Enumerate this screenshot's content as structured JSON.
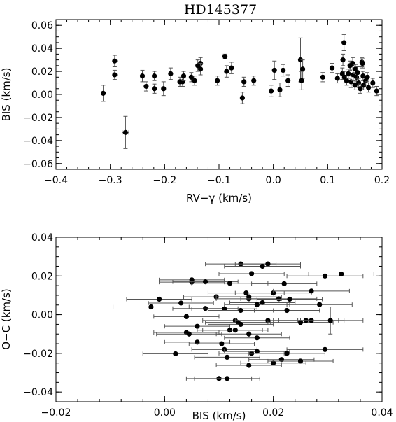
{
  "chart_data": [
    {
      "type": "scatter",
      "title": "HD145377",
      "xlabel": "RV−γ (km/s)",
      "ylabel": "BIS (km/s)",
      "xlim": [
        -0.4,
        0.2
      ],
      "ylim": [
        -0.065,
        0.065
      ],
      "xticks": [
        -0.4,
        -0.3,
        -0.2,
        -0.1,
        0.0,
        0.1,
        0.2
      ],
      "xtick_labels": [
        "−0.4",
        "−0.3",
        "−0.2",
        "−0.1",
        "0.0",
        "0.1",
        "0.2"
      ],
      "yticks": [
        -0.06,
        -0.04,
        -0.02,
        0.0,
        0.02,
        0.04,
        0.06
      ],
      "ytick_labels": [
        "−0.06",
        "−0.04",
        "−0.02",
        "0.00",
        "0.02",
        "0.04",
        "0.06"
      ],
      "grid": false,
      "points": [
        {
          "x": -0.313,
          "y": 0.001,
          "ey": 0.007
        },
        {
          "x": -0.292,
          "y": 0.029,
          "ey": 0.005
        },
        {
          "x": -0.292,
          "y": 0.017,
          "ey": 0.004
        },
        {
          "x": -0.272,
          "y": -0.033,
          "ey": 0.014,
          "ex": 0.006
        },
        {
          "x": -0.241,
          "y": 0.016,
          "ey": 0.005
        },
        {
          "x": -0.234,
          "y": 0.007,
          "ey": 0.004
        },
        {
          "x": -0.219,
          "y": 0.016,
          "ey": 0.004
        },
        {
          "x": -0.219,
          "y": 0.005,
          "ey": 0.004
        },
        {
          "x": -0.202,
          "y": 0.005,
          "ey": 0.006
        },
        {
          "x": -0.189,
          "y": 0.018,
          "ey": 0.005
        },
        {
          "x": -0.172,
          "y": 0.011,
          "ey": 0.004
        },
        {
          "x": -0.167,
          "y": 0.011,
          "ey": 0.004
        },
        {
          "x": -0.165,
          "y": 0.016,
          "ey": 0.004
        },
        {
          "x": -0.151,
          "y": 0.015,
          "ey": 0.004
        },
        {
          "x": -0.145,
          "y": 0.012,
          "ey": 0.004
        },
        {
          "x": -0.139,
          "y": 0.025,
          "ey": 0.005
        },
        {
          "x": -0.134,
          "y": 0.027,
          "ey": 0.005
        },
        {
          "x": -0.134,
          "y": 0.022,
          "ey": 0.005
        },
        {
          "x": -0.103,
          "y": 0.012,
          "ey": 0.004
        },
        {
          "x": -0.089,
          "y": 0.033,
          "ey": 0.002
        },
        {
          "x": -0.086,
          "y": 0.02,
          "ey": 0.005
        },
        {
          "x": -0.077,
          "y": 0.023,
          "ey": 0.005
        },
        {
          "x": -0.057,
          "y": -0.003,
          "ey": 0.005
        },
        {
          "x": -0.054,
          "y": 0.011,
          "ey": 0.004
        },
        {
          "x": -0.036,
          "y": 0.012,
          "ey": 0.004
        },
        {
          "x": -0.004,
          "y": 0.003,
          "ey": 0.005
        },
        {
          "x": 0.002,
          "y": 0.021,
          "ey": 0.008
        },
        {
          "x": 0.012,
          "y": 0.004,
          "ey": 0.006
        },
        {
          "x": 0.018,
          "y": 0.021,
          "ey": 0.005
        },
        {
          "x": 0.027,
          "y": 0.012,
          "ey": 0.005
        },
        {
          "x": 0.05,
          "y": 0.03,
          "ey": 0.019
        },
        {
          "x": 0.054,
          "y": 0.022,
          "ey": 0.008
        },
        {
          "x": 0.052,
          "y": 0.012,
          "ey": 0.008
        },
        {
          "x": 0.091,
          "y": 0.015,
          "ey": 0.004
        },
        {
          "x": 0.108,
          "y": 0.023,
          "ey": 0.004
        },
        {
          "x": 0.118,
          "y": 0.014,
          "ey": 0.004
        },
        {
          "x": 0.13,
          "y": 0.045,
          "ey": 0.007
        },
        {
          "x": 0.128,
          "y": 0.03,
          "ey": 0.005
        },
        {
          "x": 0.127,
          "y": 0.018,
          "ey": 0.005
        },
        {
          "x": 0.131,
          "y": 0.015,
          "ey": 0.005
        },
        {
          "x": 0.135,
          "y": 0.012,
          "ey": 0.004
        },
        {
          "x": 0.138,
          "y": 0.018,
          "ey": 0.004
        },
        {
          "x": 0.141,
          "y": 0.025,
          "ey": 0.004
        },
        {
          "x": 0.143,
          "y": 0.011,
          "ey": 0.005
        },
        {
          "x": 0.146,
          "y": 0.027,
          "ey": 0.005
        },
        {
          "x": 0.147,
          "y": 0.017,
          "ey": 0.005
        },
        {
          "x": 0.15,
          "y": 0.008,
          "ey": 0.004
        },
        {
          "x": 0.151,
          "y": 0.022,
          "ey": 0.004
        },
        {
          "x": 0.153,
          "y": 0.015,
          "ey": 0.004
        },
        {
          "x": 0.155,
          "y": 0.019,
          "ey": 0.005
        },
        {
          "x": 0.157,
          "y": 0.01,
          "ey": 0.004
        },
        {
          "x": 0.16,
          "y": 0.005,
          "ey": 0.004
        },
        {
          "x": 0.163,
          "y": 0.028,
          "ey": 0.004
        },
        {
          "x": 0.164,
          "y": 0.027,
          "ey": 0.004
        },
        {
          "x": 0.165,
          "y": 0.016,
          "ey": 0.004
        },
        {
          "x": 0.166,
          "y": 0.008,
          "ey": 0.004
        },
        {
          "x": 0.17,
          "y": 0.012,
          "ey": 0.004
        },
        {
          "x": 0.173,
          "y": 0.015,
          "ey": 0.004
        },
        {
          "x": 0.175,
          "y": 0.006,
          "ey": 0.004
        },
        {
          "x": 0.183,
          "y": 0.01,
          "ey": 0.004
        },
        {
          "x": 0.19,
          "y": 0.003,
          "ey": 0.004
        }
      ]
    },
    {
      "type": "scatter",
      "title": "",
      "xlabel": "BIS (km/s)",
      "ylabel": "O−C (km/s)",
      "xlim": [
        -0.02,
        0.04
      ],
      "ylim": [
        -0.045,
        0.04
      ],
      "xticks": [
        -0.02,
        0.0,
        0.02,
        0.04
      ],
      "xtick_labels": [
        "−0.02",
        "0.00",
        "0.02",
        "0.04"
      ],
      "yticks": [
        -0.04,
        -0.02,
        0.0,
        0.02,
        0.04
      ],
      "ytick_labels": [
        "−0.04",
        "−0.02",
        "0.00",
        "0.02",
        "0.04"
      ],
      "grid": false,
      "points": [
        {
          "x": 0.014,
          "y": 0.0262,
          "ex": 0.0065
        },
        {
          "x": 0.019,
          "y": 0.0262,
          "ex": 0.006
        },
        {
          "x": 0.018,
          "y": 0.025,
          "ex": 0.007
        },
        {
          "x": 0.016,
          "y": 0.0212,
          "ex": 0.006
        },
        {
          "x": 0.0295,
          "y": 0.02,
          "ex": 0.007
        },
        {
          "x": 0.0325,
          "y": 0.021,
          "ex": 0.006
        },
        {
          "x": 0.005,
          "y": 0.018,
          "ex": 0.006
        },
        {
          "x": 0.005,
          "y": 0.0168,
          "ex": 0.006
        },
        {
          "x": 0.0075,
          "y": 0.017,
          "ex": 0.006
        },
        {
          "x": 0.012,
          "y": 0.0162,
          "ex": 0.007
        },
        {
          "x": 0.022,
          "y": 0.016,
          "ex": 0.006
        },
        {
          "x": 0.015,
          "y": 0.0112,
          "ex": 0.007
        },
        {
          "x": 0.02,
          "y": 0.0112,
          "ex": 0.007
        },
        {
          "x": 0.027,
          "y": 0.0122,
          "ex": 0.007
        },
        {
          "x": 0.0095,
          "y": 0.0092,
          "ex": 0.006
        },
        {
          "x": 0.0155,
          "y": 0.0092,
          "ex": 0.006
        },
        {
          "x": 0.0155,
          "y": 0.0082,
          "ex": 0.006
        },
        {
          "x": 0.021,
          "y": 0.0082,
          "ex": 0.007
        },
        {
          "x": 0.023,
          "y": 0.008,
          "ex": 0.006
        },
        {
          "x": -0.001,
          "y": 0.008,
          "ex": 0.006
        },
        {
          "x": 0.018,
          "y": 0.0062,
          "ex": 0.006
        },
        {
          "x": 0.017,
          "y": 0.0052,
          "ex": 0.006
        },
        {
          "x": 0.0285,
          "y": 0.0052,
          "ex": 0.006
        },
        {
          "x": 0.003,
          "y": 0.006,
          "ex": 0.006
        },
        {
          "x": -0.0025,
          "y": 0.004,
          "ex": 0.007
        },
        {
          "x": 0.0075,
          "y": 0.0032,
          "ex": 0.006
        },
        {
          "x": 0.011,
          "y": 0.003,
          "ex": 0.006
        },
        {
          "x": 0.014,
          "y": 0.0022,
          "ex": 0.006
        },
        {
          "x": 0.0225,
          "y": 0.0022,
          "ex": 0.006
        },
        {
          "x": 0.004,
          "y": -0.001,
          "ex": 0.006
        },
        {
          "x": 0.013,
          "y": -0.003,
          "ex": 0.006
        },
        {
          "x": 0.0135,
          "y": -0.004,
          "ex": 0.006
        },
        {
          "x": 0.014,
          "y": -0.005,
          "ex": 0.006
        },
        {
          "x": 0.019,
          "y": -0.003,
          "ex": 0.006
        },
        {
          "x": 0.025,
          "y": -0.004,
          "ex": 0.006
        },
        {
          "x": 0.026,
          "y": -0.003,
          "ex": 0.006
        },
        {
          "x": 0.027,
          "y": -0.003,
          "ex": 0.006
        },
        {
          "x": 0.0305,
          "y": -0.003,
          "ex": 0.006,
          "ey": 0.007
        },
        {
          "x": 0.006,
          "y": -0.006,
          "ex": 0.006
        },
        {
          "x": 0.012,
          "y": -0.008,
          "ex": 0.006
        },
        {
          "x": 0.013,
          "y": -0.008,
          "ex": 0.006
        },
        {
          "x": 0.004,
          "y": -0.0092,
          "ex": 0.006
        },
        {
          "x": 0.0045,
          "y": -0.01,
          "ex": 0.006
        },
        {
          "x": 0.0155,
          "y": -0.01,
          "ex": 0.006
        },
        {
          "x": 0.017,
          "y": -0.012,
          "ex": 0.006
        },
        {
          "x": 0.006,
          "y": -0.0142,
          "ex": 0.006
        },
        {
          "x": 0.0105,
          "y": -0.015,
          "ex": 0.006
        },
        {
          "x": 0.011,
          "y": -0.018,
          "ex": 0.006
        },
        {
          "x": 0.016,
          "y": -0.02,
          "ex": 0.006
        },
        {
          "x": 0.017,
          "y": -0.019,
          "ex": 0.006
        },
        {
          "x": 0.0295,
          "y": -0.018,
          "ex": 0.007
        },
        {
          "x": 0.002,
          "y": -0.0202,
          "ex": 0.006
        },
        {
          "x": 0.0115,
          "y": -0.022,
          "ex": 0.006
        },
        {
          "x": 0.0225,
          "y": -0.02,
          "ex": 0.007
        },
        {
          "x": 0.02,
          "y": -0.025,
          "ex": 0.006
        },
        {
          "x": 0.0215,
          "y": -0.0232,
          "ex": 0.006
        },
        {
          "x": 0.025,
          "y": -0.024,
          "ex": 0.006
        },
        {
          "x": 0.0155,
          "y": -0.0262,
          "ex": 0.006
        },
        {
          "x": 0.01,
          "y": -0.033,
          "ex": 0.006
        },
        {
          "x": 0.0115,
          "y": -0.033,
          "ex": 0.006
        }
      ]
    }
  ]
}
